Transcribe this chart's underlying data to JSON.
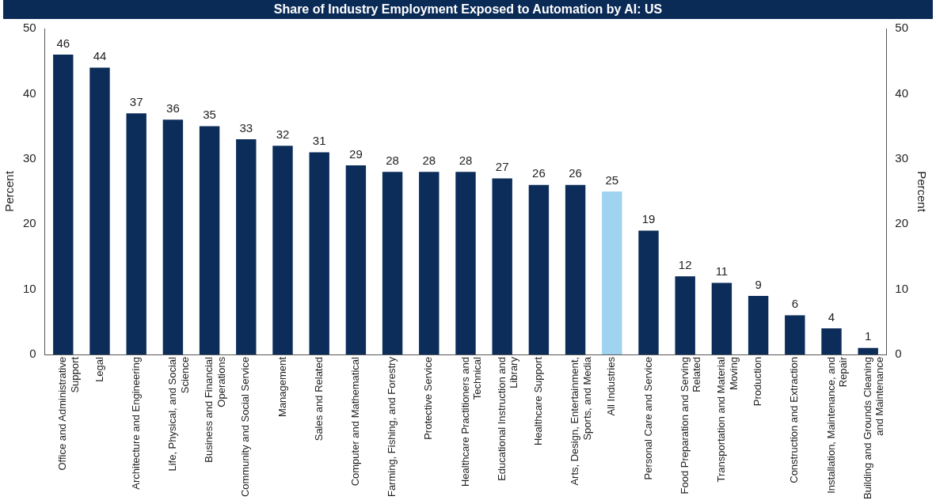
{
  "chart_data": {
    "type": "bar",
    "title": "Share of Industry Employment Exposed to Automation by AI: US",
    "ylabel": "Percent",
    "y2label": "Percent",
    "categories": [
      "Office and Administrative Support",
      "Legal",
      "Architecture and Engineering",
      "Life, Physical, and Social Science",
      "Business and Financial Operations",
      "Community and Social Service",
      "Management",
      "Sales and Related",
      "Computer and Mathematical",
      "Farming, Fishing, and Forestry",
      "Protective Service",
      "Healthcare Practitioners and Technical",
      "Educational Instruction and Library",
      "Healthcare Support",
      "Arts, Design, Entertainment, Sports, and Media",
      "All Industries",
      "Personal Care and Service",
      "Food Preparation and Serving Related",
      "Transportation and Material Moving",
      "Production",
      "Construction and Extraction",
      "Installation, Maintenance, and Repair",
      "Building and Grounds Cleaning and Maintenance"
    ],
    "values": [
      46,
      44,
      37,
      36,
      35,
      33,
      32,
      31,
      29,
      28,
      28,
      28,
      27,
      26,
      26,
      25,
      19,
      12,
      11,
      9,
      6,
      4,
      1
    ],
    "colors": [
      "#0c2d5a",
      "#0c2d5a",
      "#0c2d5a",
      "#0c2d5a",
      "#0c2d5a",
      "#0c2d5a",
      "#0c2d5a",
      "#0c2d5a",
      "#0c2d5a",
      "#0c2d5a",
      "#0c2d5a",
      "#0c2d5a",
      "#0c2d5a",
      "#0c2d5a",
      "#0c2d5a",
      "#9fd3f0",
      "#0c2d5a",
      "#0c2d5a",
      "#0c2d5a",
      "#0c2d5a",
      "#0c2d5a",
      "#0c2d5a",
      "#0c2d5a"
    ],
    "ylim": [
      0,
      50
    ],
    "yticks": [
      0,
      10,
      20,
      30,
      40,
      50
    ],
    "y2lim": [
      0,
      50
    ],
    "y2ticks": [
      0,
      10,
      20,
      30,
      40,
      50
    ],
    "data_labels": true,
    "grid": false,
    "legend": false
  }
}
